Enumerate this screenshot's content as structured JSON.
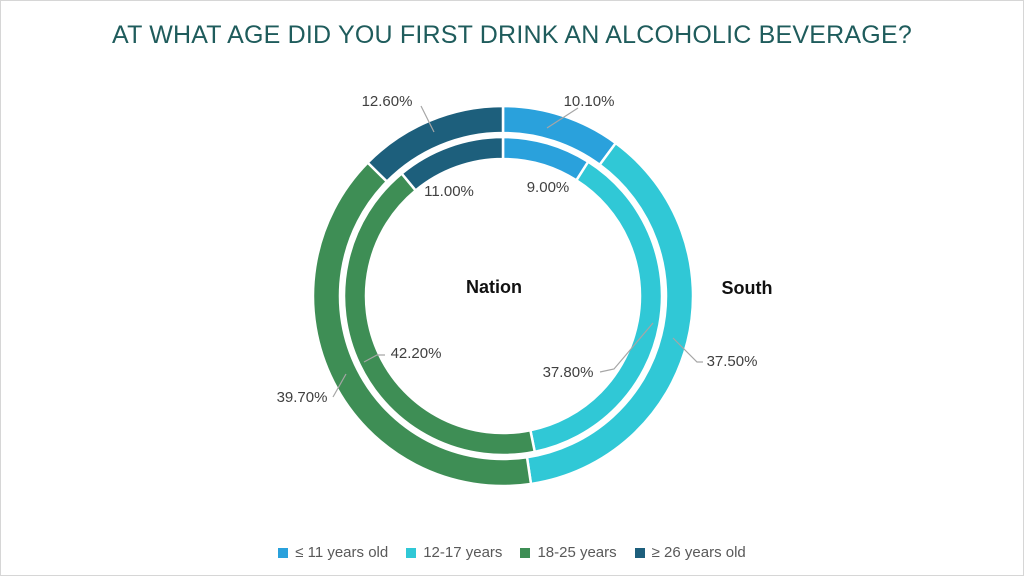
{
  "chart_data": {
    "type": "pie",
    "subtype": "concentric-double-donut",
    "title": "AT WHAT AGE DID YOU FIRST DRINK AN ALCOHOLIC BEVERAGE?",
    "categories": [
      "≤ 11 years old",
      "12-17 years",
      "18-25 years",
      "≥ 26 years old"
    ],
    "colors": [
      "#2AA1DC",
      "#30C8D6",
      "#3E8E55",
      "#1D5F7C"
    ],
    "series": [
      {
        "name": "Nation",
        "ring": "inner",
        "values": [
          9.0,
          37.8,
          42.2,
          11.0
        ],
        "labels": [
          "9.00%",
          "37.80%",
          "42.20%",
          "11.00%"
        ]
      },
      {
        "name": "South",
        "ring": "outer",
        "values": [
          10.1,
          37.5,
          39.7,
          12.6
        ],
        "labels": [
          "10.10%",
          "37.50%",
          "39.70%",
          "12.60%"
        ]
      }
    ],
    "legend_position": "bottom",
    "start_angle_deg": 0,
    "direction": "clockwise",
    "grid": false
  },
  "styles": {
    "title_color": "#1F5C5C",
    "data_label_color": "#404040",
    "leader_line_color": "#A6A6A6",
    "ring_label_color": "#111111",
    "legend_text_color": "#595959",
    "segment_border_color": "#FFFFFF",
    "background": "#FFFFFF"
  }
}
